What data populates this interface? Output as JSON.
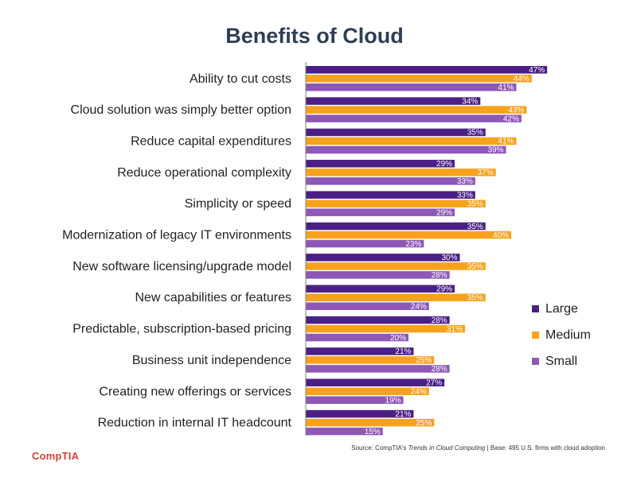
{
  "title": "Benefits of Cloud",
  "footer": {
    "source_prefix": "Source: CompTIA's ",
    "source_italic": "Trends in Cloud Computing",
    "source_suffix": " | Base: 495 U.S. firms with cloud adoption",
    "logo_text": "CompTIA"
  },
  "colors": {
    "large": "#4b1f86",
    "medium": "#f7a21c",
    "small": "#8e58b6",
    "axis": "#7f7f7f"
  },
  "chart_data": {
    "type": "bar",
    "orientation": "horizontal",
    "title": "Benefits of Cloud",
    "categories": [
      "Ability to cut costs",
      "Cloud solution was simply better option",
      "Reduce capital expenditures",
      "Reduce operational complexity",
      "Simplicity or speed",
      "Modernization of legacy IT environments",
      "New software licensing/upgrade model",
      "New capabilities or features",
      "Predictable, subscription-based pricing",
      "Business unit independence",
      "Creating new offerings or services",
      "Reduction in internal IT headcount"
    ],
    "series": [
      {
        "name": "Large",
        "color": "#4b1f86",
        "values": [
          47,
          34,
          35,
          29,
          33,
          35,
          30,
          29,
          28,
          21,
          27,
          21
        ]
      },
      {
        "name": "Medium",
        "color": "#f7a21c",
        "values": [
          44,
          43,
          41,
          37,
          35,
          40,
          35,
          35,
          31,
          25,
          24,
          25
        ]
      },
      {
        "name": "Small",
        "color": "#8e58b6",
        "values": [
          41,
          42,
          39,
          33,
          29,
          23,
          28,
          24,
          20,
          28,
          19,
          15
        ]
      }
    ],
    "value_suffix": "%",
    "legend": [
      "Large",
      "Medium",
      "Small"
    ],
    "legend_position": "right",
    "grid": false,
    "xlim": [
      0,
      60
    ]
  }
}
